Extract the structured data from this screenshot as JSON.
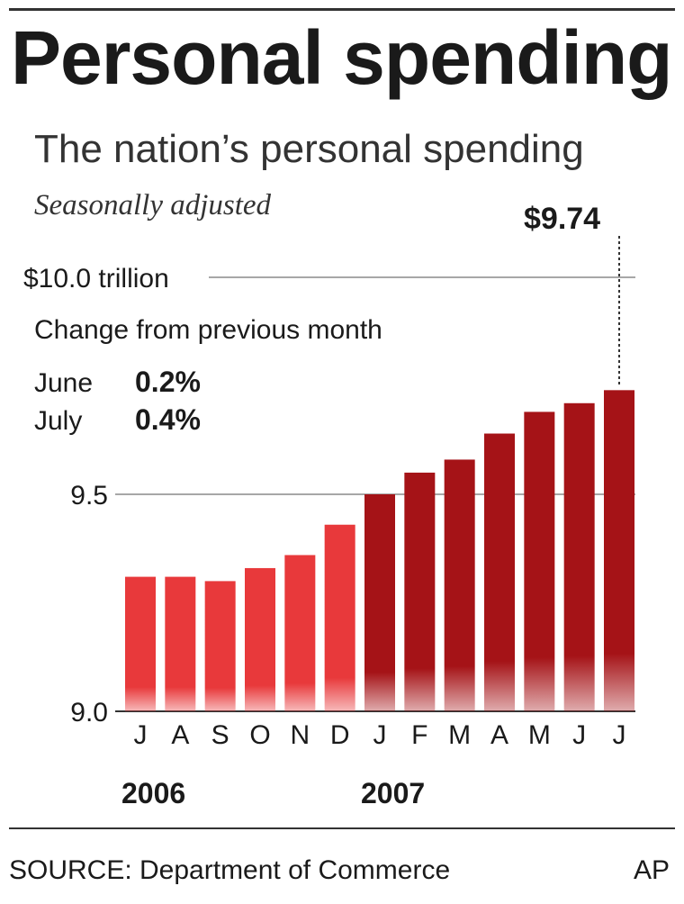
{
  "header": {
    "title": "Personal spending",
    "subtitle": "The nation’s personal spending",
    "note": "Seasonally adjusted",
    "callout": "$9.74"
  },
  "change": {
    "heading": "Change from previous month",
    "rows": [
      {
        "month": "June",
        "value": "0.2%"
      },
      {
        "month": "July",
        "value": "0.4%"
      }
    ]
  },
  "footer": {
    "source": "SOURCE: Department of Commerce",
    "credit": "AP"
  },
  "chart_data": {
    "type": "bar",
    "categories": [
      "J",
      "A",
      "S",
      "O",
      "N",
      "D",
      "J",
      "F",
      "M",
      "A",
      "M",
      "J",
      "J"
    ],
    "year_labels": [
      {
        "label": "2006",
        "start_index": 0
      },
      {
        "label": "2007",
        "start_index": 6
      }
    ],
    "series": [
      {
        "values": [
          9.31,
          9.31,
          9.3,
          9.33,
          9.36,
          9.43,
          9.5,
          9.55,
          9.58,
          9.64,
          9.69,
          9.71,
          9.74
        ]
      }
    ],
    "ylim": [
      9.0,
      10.0
    ],
    "y_ticks": [
      {
        "value": 9.0,
        "label": "9.0"
      },
      {
        "value": 9.5,
        "label": "9.5"
      },
      {
        "value": 10.0,
        "label": "$10.0 trillion"
      }
    ],
    "grid": true,
    "colors": {
      "2006": "#e8393b",
      "2007": "#a51317",
      "gridline": "#8a8a8a",
      "axis": "#333333"
    }
  }
}
